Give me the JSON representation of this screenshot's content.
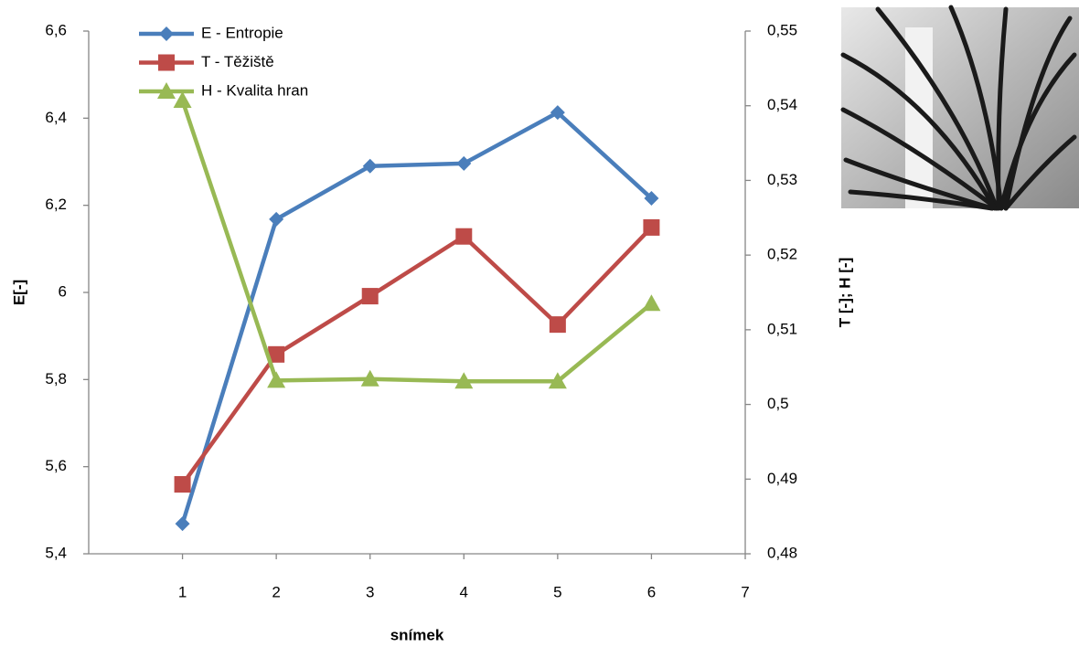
{
  "chart_data": {
    "type": "line",
    "x": [
      1,
      2,
      3,
      4,
      5,
      6
    ],
    "xlabel": "snímek",
    "ylabel": "E[-]",
    "y2label": "T [-]; H [-]",
    "xlim": [
      0,
      7
    ],
    "xticks": [
      1,
      2,
      3,
      4,
      5,
      6,
      7
    ],
    "ylim": [
      5.4,
      6.6
    ],
    "yticks": [
      {
        "value": 5.4,
        "label": "5,4"
      },
      {
        "value": 5.6,
        "label": "5,6"
      },
      {
        "value": 5.8,
        "label": "5,8"
      },
      6,
      {
        "value": 6.2,
        "label": "6,2"
      },
      {
        "value": 6.4,
        "label": "6,4"
      },
      {
        "value": 6.6,
        "label": "6,6"
      }
    ],
    "y2lim": [
      0.48,
      0.55
    ],
    "y2ticks": [
      {
        "value": 0.48,
        "label": "0,48"
      },
      {
        "value": 0.49,
        "label": "0,49"
      },
      {
        "value": 0.5,
        "label": "0,5"
      },
      {
        "value": 0.51,
        "label": "0,51"
      },
      {
        "value": 0.52,
        "label": "0,52"
      },
      {
        "value": 0.53,
        "label": "0,53"
      },
      {
        "value": 0.54,
        "label": "0,54"
      },
      {
        "value": 0.55,
        "label": "0,55"
      }
    ],
    "legend": "top-left",
    "series": [
      {
        "name": "E - Entropie",
        "color": "#4a7ebb",
        "marker": "diamond",
        "values": [
          5.469,
          6.168,
          6.29,
          6.296,
          6.413,
          6.216
        ]
      },
      {
        "name": "T - Těžiště",
        "color": "#be4b48",
        "marker": "square",
        "axis": "y2",
        "values": [
          0.4893,
          0.5067,
          0.5145,
          0.5225,
          0.5107,
          0.5237
        ]
      },
      {
        "name": "H - Kvalita hran",
        "color": "#98b954",
        "marker": "triangle",
        "axis": "y2",
        "values": [
          0.5407,
          0.5032,
          0.5034,
          0.5031,
          0.5031,
          0.5135
        ]
      }
    ]
  }
}
